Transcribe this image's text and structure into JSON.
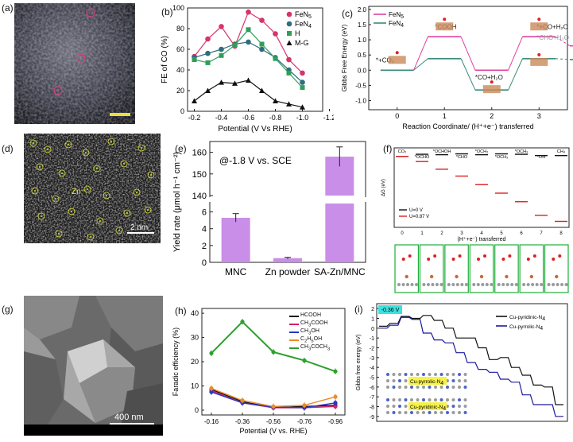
{
  "panels": {
    "a": {
      "label": "(a)"
    },
    "b": {
      "label": "(b)",
      "chart_data": {
        "type": "line",
        "xlabel": "Potential (V Vs RHE)",
        "ylabel": "FE of CO (%)",
        "x": [
          -0.2,
          -0.3,
          -0.4,
          -0.5,
          -0.6,
          -0.7,
          -0.8,
          -0.9,
          -1.0
        ],
        "xticks": [
          "-0.2",
          "-0.4",
          "-0.6",
          "-0.8",
          "-1.0",
          "-1.2"
        ],
        "xtick_values": [
          -0.2,
          -0.4,
          -0.6,
          -0.8,
          -1.0,
          -1.2
        ],
        "yticks": [
          "0",
          "20",
          "40",
          "60",
          "80",
          "100"
        ],
        "xlim": [
          -0.15,
          -1.15
        ],
        "ylim": [
          0,
          100
        ],
        "series": [
          {
            "name": "FeN5",
            "name_base": "FeN",
            "name_sub": "5",
            "color": "#d6336c",
            "marker": "circle",
            "x": [
              -0.2,
              -0.3,
              -0.4,
              -0.5,
              -0.6,
              -0.7,
              -0.8,
              -0.9,
              -1.0
            ],
            "values": [
              53,
              70,
              82,
              63,
              96,
              88,
              75,
              50,
              37
            ]
          },
          {
            "name": "FeN4",
            "name_base": "FeN",
            "name_sub": "4",
            "color": "#2d6e7e",
            "marker": "circle",
            "x": [
              -0.2,
              -0.3,
              -0.4,
              -0.5,
              -0.6,
              -0.7,
              -0.8,
              -0.9,
              -1.0
            ],
            "values": [
              52,
              56,
              60,
              65,
              67,
              60,
              52,
              40,
              28
            ]
          },
          {
            "name": "H",
            "name_base": "H",
            "name_sub": "",
            "color": "#2e9e5a",
            "marker": "square",
            "x": [
              -0.2,
              -0.3,
              -0.4,
              -0.5,
              -0.6,
              -0.7,
              -0.8,
              -0.9,
              -1.0
            ],
            "values": [
              50,
              47,
              54,
              64,
              79,
              65,
              51,
              37,
              23
            ]
          },
          {
            "name": "M-G",
            "name_base": "M-G",
            "name_sub": "",
            "color": "#111111",
            "marker": "triangle",
            "x": [
              -0.2,
              -0.3,
              -0.4,
              -0.5,
              -0.6,
              -0.7,
              -0.8,
              -0.9,
              -1.0
            ],
            "values": [
              10,
              20,
              28,
              27,
              30,
              20,
              10,
              7,
              4
            ]
          }
        ]
      }
    },
    "c": {
      "label": "(c)",
      "chart_data": {
        "type": "line",
        "xlabel": "Reaction Coordinate/ (H⁺+e⁻) transferred",
        "ylabel": "Gibbs Free Energy (eV)",
        "xticks": [
          "0",
          "1",
          "2",
          "3"
        ],
        "yticks": [
          "-1.0",
          "-0.5",
          "0.0",
          "0.5",
          "1.0",
          "1.5",
          "2.0"
        ],
        "xlim": [
          -0.6,
          3.6
        ],
        "ylim": [
          -1.3,
          2.1
        ],
        "annotations": [
          "*+CO₂",
          "*COOH",
          "*CO+H₂O",
          "*+CO+H₂O",
          "*CHO+H₂O"
        ],
        "series": [
          {
            "name": "FeN5",
            "name_base": "FeN",
            "name_sub": "5",
            "color": "#e040a0",
            "levels": [
              0.0,
              1.1,
              0.0,
              1.1,
              0.8
            ]
          },
          {
            "name": "FeN4",
            "name_base": "FeN",
            "name_sub": "4",
            "color": "#3a8a7a",
            "levels": [
              0.0,
              0.38,
              -0.65,
              0.38,
              0.35
            ]
          }
        ]
      }
    },
    "d": {
      "label": "(d)",
      "element_label": "Zn",
      "scalebar": "2 nm"
    },
    "e": {
      "label": "(e)",
      "chart_data": {
        "type": "bar",
        "categories": [
          "MNC",
          "Zn powder",
          "SA-Zn/MNC"
        ],
        "values": [
          5.3,
          0.5,
          158
        ],
        "errors": [
          0.5,
          0.1,
          4.5
        ],
        "annotation": "@-1.8 V vs. SCE",
        "ylabel": "Yield rate (μmol h⁻¹ cm⁻²)",
        "yticks_low": [
          "0",
          "2",
          "4",
          "6"
        ],
        "yticks_high": [
          "140",
          "150",
          "160"
        ],
        "ylim_low": [
          0,
          7
        ],
        "ylim_high": [
          140,
          165
        ],
        "color": "#c98ee8"
      }
    },
    "f": {
      "label": "(f)",
      "chart_data": {
        "type": "line",
        "xlabel": "(H⁺+e⁻) transferred",
        "ylabel": "ΔG (eV)",
        "xticks": [
          "0",
          "1",
          "2",
          "3",
          "4",
          "5",
          "6",
          "7",
          "8"
        ],
        "intermediates": [
          "CO₂",
          "*OCHO",
          "*OCHOH",
          "*CHO",
          "*OCH₂",
          "*OCH₃",
          "*OCH₃",
          "*OH",
          "CH₄"
        ],
        "series": [
          {
            "name": "U=0 V",
            "color": "#111111",
            "levels": [
              0.0,
              0.25,
              0.2,
              0.3,
              0.2,
              0.3,
              0.25,
              0.1,
              0.1
            ]
          },
          {
            "name": "U=0.87 V",
            "color": "#e02020",
            "levels": [
              0.0,
              -0.6,
              -1.5,
              -2.3,
              -3.3,
              -4.3,
              -5.3,
              -6.9,
              -7.6
            ]
          }
        ],
        "structure_labels": [
          "1",
          "2",
          "3",
          "4",
          "5",
          "6",
          "7"
        ]
      }
    },
    "g": {
      "label": "(g)",
      "scalebar": "400 nm"
    },
    "h": {
      "label": "(h)",
      "chart_data": {
        "type": "line",
        "xlabel": "Potential (V vs. RHE)",
        "ylabel": "Faradic efficiency (%)",
        "xticks": [
          "-0.16",
          "-0.36",
          "-0.56",
          "-0.76",
          "-0.96"
        ],
        "x": [
          -0.16,
          -0.36,
          -0.56,
          -0.76,
          -0.96
        ],
        "yticks": [
          "0",
          "10",
          "20",
          "30",
          "40"
        ],
        "ylim": [
          -2,
          42
        ],
        "series": [
          {
            "name": "HCOOH",
            "name_html": "HCOOH",
            "color": "#111111",
            "values": [
              8.5,
              3.5,
              1.0,
              1.5,
              2.0
            ]
          },
          {
            "name": "CH3COOH",
            "name_html": "CH<sub>3</sub>COOH",
            "color": "#d61f6a",
            "values": [
              8.0,
              3.0,
              1.0,
              1.0,
              1.5
            ]
          },
          {
            "name": "CH3OH",
            "name_html": "CH<sub>3</sub>OH",
            "color": "#2a35c9",
            "values": [
              7.5,
              3.0,
              1.2,
              1.0,
              3.0
            ]
          },
          {
            "name": "C2H5OH",
            "name_html": "C<sub>2</sub>H<sub>5</sub>OH",
            "color": "#f08a24",
            "values": [
              9.0,
              4.0,
              1.5,
              2.0,
              5.5
            ]
          },
          {
            "name": "CH3COCH3",
            "name_html": "CH<sub>3</sub>COCH<sub>3</sub>",
            "color": "#2da02d",
            "values": [
              23.5,
              36.5,
              24.0,
              20.5,
              16.0
            ]
          }
        ]
      }
    },
    "i": {
      "label": "(i)",
      "chart_data": {
        "type": "line",
        "ylabel": "Gibbs free energy (eV)",
        "yticks": [
          "2",
          "1",
          "0",
          "-1",
          "-2",
          "-3",
          "-4",
          "-5",
          "-6",
          "-7",
          "-8",
          "-9"
        ],
        "ylim": [
          -9.5,
          2.5
        ],
        "badge": "-0.36 V",
        "series": [
          {
            "name": "Cu-pyridinic-N4",
            "name_base": "Cu-pyridinic-N",
            "name_sub": "4",
            "color": "#111111",
            "levels": [
              0.2,
              0.5,
              1.2,
              1.0,
              1.3,
              0.8,
              0.0,
              -1.0,
              -1.0,
              -2.0,
              -3.2,
              -3.0,
              -4.0,
              -4.8,
              -5.8,
              -6.0,
              -7.8
            ]
          },
          {
            "name": "Cu-pyrrolic-N4",
            "name_base": "Cu-pyrrolic-N",
            "name_sub": "4",
            "color": "#1a1a9e",
            "levels": [
              0.0,
              0.3,
              1.1,
              0.9,
              -0.5,
              -1.2,
              -1.5,
              -2.5,
              -3.5,
              -4.2,
              -4.5,
              -5.2,
              -5.5,
              -6.8,
              -7.8,
              -7.8,
              -9.0
            ]
          }
        ],
        "structure_labels": [
          "Cu-pyrrolic-N4",
          "Cu-pyridinic-N4"
        ]
      }
    }
  }
}
